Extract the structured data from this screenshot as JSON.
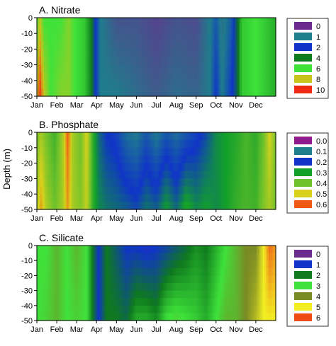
{
  "figure": {
    "shared_ylabel": "Depth (m)"
  },
  "chart_data": [
    {
      "type": "heatmap",
      "title": "A. Nitrate",
      "x_categories": [
        "Jan",
        "Feb",
        "Mar",
        "Apr",
        "May",
        "Jun",
        "Jul",
        "Aug",
        "Sep",
        "Oct",
        "Nov",
        "Dec"
      ],
      "y_ticks": [
        0,
        -10,
        -20,
        -30,
        -40,
        -50
      ],
      "ylim": [
        -50,
        0
      ],
      "ylabel": "Depth (m)",
      "legend": {
        "placement": "right",
        "entries": [
          {
            "label": "0",
            "color": "#6a2a8e"
          },
          {
            "label": "1",
            "color": "#1f7d8c"
          },
          {
            "label": "2",
            "color": "#1034c8"
          },
          {
            "label": "4",
            "color": "#0f7a1e"
          },
          {
            "label": "6",
            "color": "#3fe23a"
          },
          {
            "label": "8",
            "color": "#c9c41c"
          },
          {
            "label": "10",
            "color": "#ee2a14"
          }
        ]
      },
      "columns": [
        {
          "month": 0.0,
          "surface": 6.0,
          "bottom": 8.0
        },
        {
          "month": 0.15,
          "surface": 8.0,
          "bottom": 10.0
        },
        {
          "month": 0.35,
          "surface": 6.0,
          "bottom": 8.0
        },
        {
          "month": 0.7,
          "surface": 6.0,
          "bottom": 6.0
        },
        {
          "month": 1.2,
          "surface": 6.0,
          "bottom": 7.0
        },
        {
          "month": 1.6,
          "surface": 7.0,
          "bottom": 7.0
        },
        {
          "month": 1.9,
          "surface": 6.0,
          "bottom": 6.0
        },
        {
          "month": 2.4,
          "surface": 5.5,
          "bottom": 5.5
        },
        {
          "month": 2.75,
          "surface": 4.0,
          "bottom": 4.0
        },
        {
          "month": 2.95,
          "surface": 2.0,
          "bottom": 2.0
        },
        {
          "month": 3.2,
          "surface": 1.0,
          "bottom": 1.0
        },
        {
          "month": 4.0,
          "surface": 0.5,
          "bottom": 1.0
        },
        {
          "month": 5.0,
          "surface": 0.5,
          "bottom": 0.8
        },
        {
          "month": 6.0,
          "surface": 0.3,
          "bottom": 0.6
        },
        {
          "month": 7.0,
          "surface": 0.5,
          "bottom": 0.8
        },
        {
          "month": 8.0,
          "surface": 0.4,
          "bottom": 0.7
        },
        {
          "month": 8.7,
          "surface": 1.0,
          "bottom": 1.0
        },
        {
          "month": 9.0,
          "surface": 1.5,
          "bottom": 2.0
        },
        {
          "month": 9.3,
          "surface": 0.8,
          "bottom": 1.0
        },
        {
          "month": 9.8,
          "surface": 1.5,
          "bottom": 2.0
        },
        {
          "month": 10.0,
          "surface": 3.0,
          "bottom": 3.0
        },
        {
          "month": 10.3,
          "surface": 5.5,
          "bottom": 5.5
        },
        {
          "month": 11.0,
          "surface": 6.0,
          "bottom": 6.0
        },
        {
          "month": 12.0,
          "surface": 5.0,
          "bottom": 5.0
        }
      ]
    },
    {
      "type": "heatmap",
      "title": "B. Phosphate",
      "x_categories": [
        "Jan",
        "Feb",
        "Mar",
        "Apr",
        "May",
        "Jun",
        "Jul",
        "Aug",
        "Sep",
        "Oct",
        "Nov",
        "Dec"
      ],
      "y_ticks": [
        0,
        -10,
        -20,
        -30,
        -40,
        -50
      ],
      "ylim": [
        -50,
        0
      ],
      "ylabel": "Depth (m)",
      "legend": {
        "placement": "right",
        "entries": [
          {
            "label": "0.0",
            "color": "#8e1a8e"
          },
          {
            "label": "0.1",
            "color": "#1f7d8c"
          },
          {
            "label": "0.2",
            "color": "#1034c8"
          },
          {
            "label": "0.3",
            "color": "#12a02a"
          },
          {
            "label": "0.4",
            "color": "#6fc22a"
          },
          {
            "label": "0.5",
            "color": "#d8d21c"
          },
          {
            "label": "0.6",
            "color": "#ee5a14"
          }
        ]
      },
      "columns": [
        {
          "month": 0.0,
          "surface": 0.4,
          "bottom": 0.45
        },
        {
          "month": 0.2,
          "surface": 0.45,
          "bottom": 0.55
        },
        {
          "month": 0.5,
          "surface": 0.4,
          "bottom": 0.45
        },
        {
          "month": 0.9,
          "surface": 0.35,
          "bottom": 0.4
        },
        {
          "month": 1.3,
          "surface": 0.45,
          "bottom": 0.45
        },
        {
          "month": 1.55,
          "surface": 0.6,
          "bottom": 0.55
        },
        {
          "month": 1.8,
          "surface": 0.45,
          "bottom": 0.45
        },
        {
          "month": 2.2,
          "surface": 0.4,
          "bottom": 0.42
        },
        {
          "month": 2.5,
          "surface": 0.5,
          "bottom": 0.48
        },
        {
          "month": 2.85,
          "surface": 0.32,
          "bottom": 0.32
        },
        {
          "month": 3.1,
          "surface": 0.25,
          "bottom": 0.28
        },
        {
          "month": 3.5,
          "surface": 0.2,
          "bottom": 0.26
        },
        {
          "month": 4.0,
          "surface": 0.18,
          "bottom": 0.25
        },
        {
          "month": 4.5,
          "surface": 0.12,
          "bottom": 0.24
        },
        {
          "month": 5.0,
          "surface": 0.1,
          "bottom": 0.22
        },
        {
          "month": 5.5,
          "surface": 0.15,
          "bottom": 0.26
        },
        {
          "month": 6.0,
          "surface": 0.1,
          "bottom": 0.24
        },
        {
          "month": 6.5,
          "surface": 0.15,
          "bottom": 0.3
        },
        {
          "month": 7.0,
          "surface": 0.12,
          "bottom": 0.25
        },
        {
          "month": 7.5,
          "surface": 0.15,
          "bottom": 0.32
        },
        {
          "month": 8.0,
          "surface": 0.18,
          "bottom": 0.28
        },
        {
          "month": 8.5,
          "surface": 0.22,
          "bottom": 0.3
        },
        {
          "month": 9.0,
          "surface": 0.28,
          "bottom": 0.28
        },
        {
          "month": 9.5,
          "surface": 0.3,
          "bottom": 0.3
        },
        {
          "month": 10.0,
          "surface": 0.32,
          "bottom": 0.34
        },
        {
          "month": 10.5,
          "surface": 0.36,
          "bottom": 0.36
        },
        {
          "month": 11.0,
          "surface": 0.33,
          "bottom": 0.35
        },
        {
          "month": 11.4,
          "surface": 0.4,
          "bottom": 0.42
        },
        {
          "month": 11.7,
          "surface": 0.5,
          "bottom": 0.45
        },
        {
          "month": 12.0,
          "surface": 0.4,
          "bottom": 0.4
        }
      ]
    },
    {
      "type": "heatmap",
      "title": "C. Silicate",
      "x_categories": [
        "Jan",
        "Feb",
        "Mar",
        "Apr",
        "May",
        "Jun",
        "Jul",
        "Aug",
        "Sep",
        "Oct",
        "Nov",
        "Dec"
      ],
      "y_ticks": [
        0,
        -10,
        -20,
        -30,
        -40,
        -50
      ],
      "ylim": [
        -50,
        0
      ],
      "ylabel": "Depth (m)",
      "legend": {
        "placement": "right",
        "entries": [
          {
            "label": "0",
            "color": "#6a2a8e"
          },
          {
            "label": "1",
            "color": "#1034c8"
          },
          {
            "label": "2",
            "color": "#0f7a1e"
          },
          {
            "label": "3",
            "color": "#3fe23a"
          },
          {
            "label": "4",
            "color": "#7a8a24"
          },
          {
            "label": "5",
            "color": "#f2ee22"
          },
          {
            "label": "6",
            "color": "#ee4a14"
          }
        ]
      },
      "columns": [
        {
          "month": 0.0,
          "surface": 3.0,
          "bottom": 3.0
        },
        {
          "month": 0.5,
          "surface": 3.0,
          "bottom": 3.2
        },
        {
          "month": 1.0,
          "surface": 3.5,
          "bottom": 3.5
        },
        {
          "month": 1.5,
          "surface": 3.0,
          "bottom": 3.0
        },
        {
          "month": 2.0,
          "surface": 3.5,
          "bottom": 3.2
        },
        {
          "month": 2.5,
          "surface": 3.0,
          "bottom": 3.0
        },
        {
          "month": 2.8,
          "surface": 2.0,
          "bottom": 2.0
        },
        {
          "month": 3.1,
          "surface": 1.0,
          "bottom": 1.0
        },
        {
          "month": 3.5,
          "surface": 2.0,
          "bottom": 2.0
        },
        {
          "month": 4.0,
          "surface": 1.5,
          "bottom": 2.0
        },
        {
          "month": 4.5,
          "surface": 1.0,
          "bottom": 1.8
        },
        {
          "month": 5.0,
          "surface": 1.0,
          "bottom": 2.5
        },
        {
          "month": 5.5,
          "surface": 0.8,
          "bottom": 2.5
        },
        {
          "month": 6.0,
          "surface": 1.0,
          "bottom": 2.2
        },
        {
          "month": 6.5,
          "surface": 1.2,
          "bottom": 3.0
        },
        {
          "month": 7.0,
          "surface": 1.5,
          "bottom": 3.2
        },
        {
          "month": 7.5,
          "surface": 1.8,
          "bottom": 3.0
        },
        {
          "month": 8.0,
          "surface": 2.2,
          "bottom": 2.8
        },
        {
          "month": 8.5,
          "surface": 2.0,
          "bottom": 2.5
        },
        {
          "month": 9.0,
          "surface": 2.5,
          "bottom": 3.0
        },
        {
          "month": 9.5,
          "surface": 3.0,
          "bottom": 3.5
        },
        {
          "month": 10.0,
          "surface": 3.5,
          "bottom": 3.5
        },
        {
          "month": 10.5,
          "surface": 4.0,
          "bottom": 4.0
        },
        {
          "month": 11.0,
          "surface": 4.0,
          "bottom": 4.5
        },
        {
          "month": 11.4,
          "surface": 5.0,
          "bottom": 5.0
        },
        {
          "month": 11.7,
          "surface": 5.8,
          "bottom": 5.0
        },
        {
          "month": 12.0,
          "surface": 5.5,
          "bottom": 5.0
        }
      ]
    }
  ]
}
